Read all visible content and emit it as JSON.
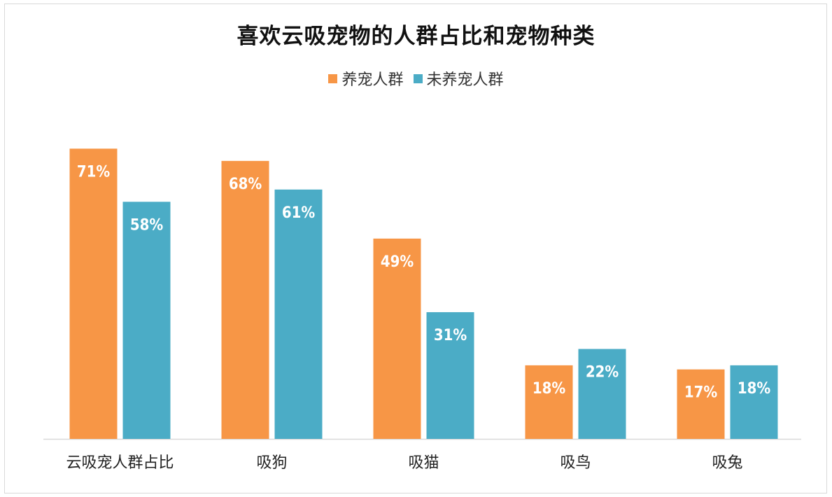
{
  "chart_data": {
    "type": "bar",
    "title": "喜欢云吸宠物的人群占比和宠物种类",
    "categories": [
      "云吸宠人群占比",
      "吸狗",
      "吸猫",
      "吸鸟",
      "吸兔"
    ],
    "series": [
      {
        "name": "养宠人群",
        "values": [
          71,
          68,
          49,
          18,
          17
        ],
        "labels": [
          "71%",
          "68%",
          "49%",
          "18%",
          "17%"
        ],
        "color": "#F79646"
      },
      {
        "name": "未养宠人群",
        "values": [
          58,
          61,
          31,
          22,
          18
        ],
        "labels": [
          "58%",
          "61%",
          "31%",
          "22%",
          "18%"
        ],
        "color": "#4BACC6"
      }
    ],
    "ylim": [
      0,
      75
    ],
    "grid": false,
    "legend_position": "top-center",
    "xlabel": "",
    "ylabel": ""
  }
}
